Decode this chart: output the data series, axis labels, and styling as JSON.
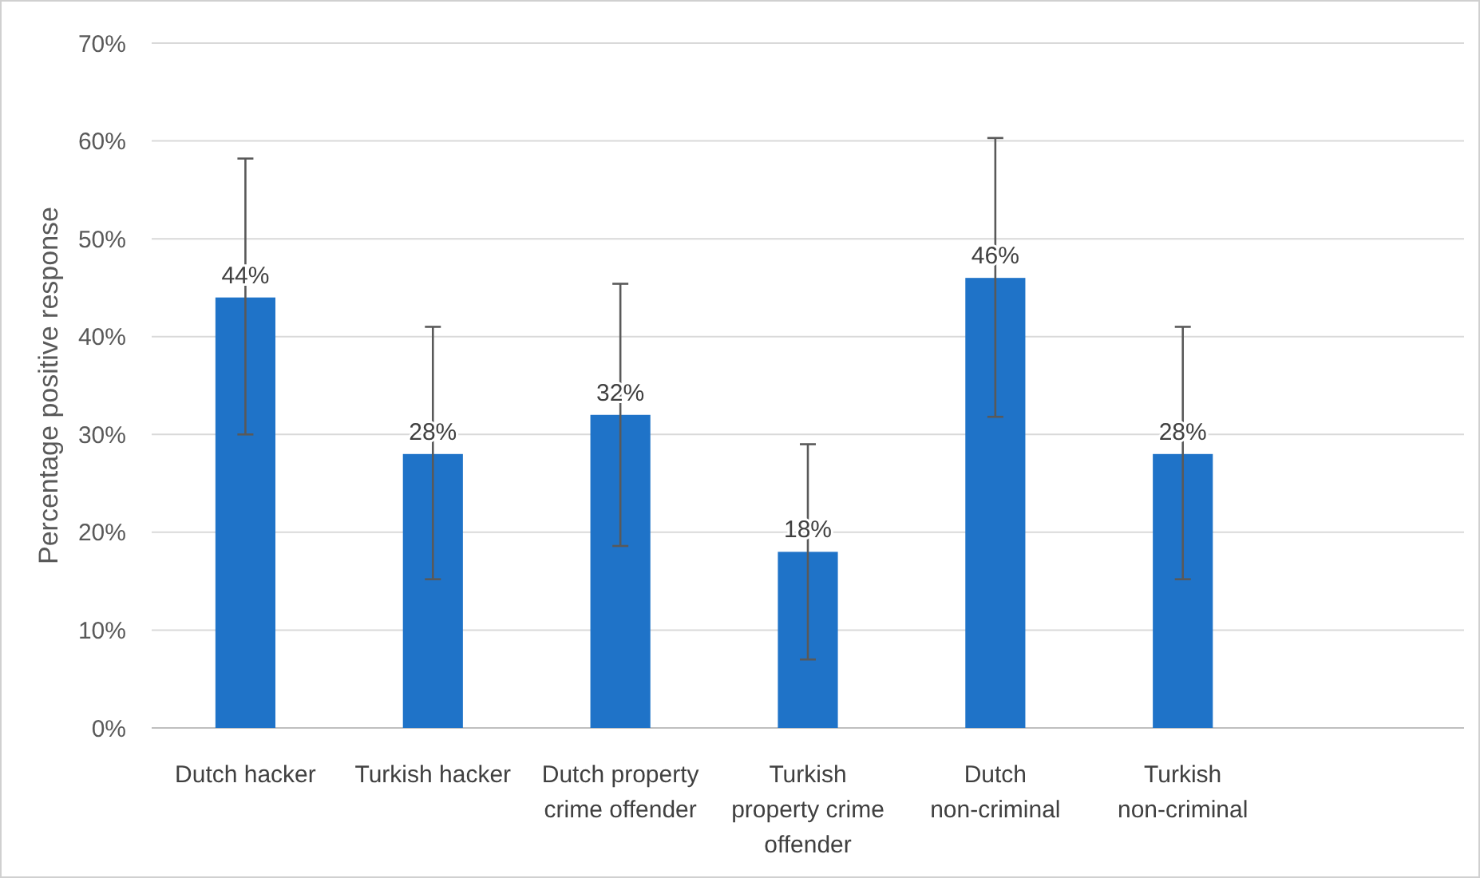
{
  "chart_data": {
    "type": "bar",
    "ylabel": "Percentage positive response",
    "categories": [
      "Dutch hacker",
      "Turkish hacker",
      "Dutch property crime offender",
      "Turkish property crime offender",
      "Dutch non-criminal",
      "Turkish non-criminal",
      null
    ],
    "values": [
      44,
      28,
      32,
      18,
      46,
      28,
      null
    ],
    "value_labels": [
      "44%",
      "28%",
      "32%",
      "18%",
      "46%",
      "28%",
      null
    ],
    "errors": [
      [
        30,
        58.2
      ],
      [
        15.2,
        41
      ],
      [
        18.6,
        45.4
      ],
      [
        7,
        29
      ],
      [
        31.8,
        60.3
      ],
      [
        15.2,
        41
      ],
      null
    ],
    "color": "#1f73c8",
    "ylim": [
      0,
      70
    ],
    "yticks": [
      {
        "value": 0,
        "label": "0%"
      },
      {
        "value": 10,
        "label": "10%"
      },
      {
        "value": 20,
        "label": "20%"
      },
      {
        "value": 30,
        "label": "30%"
      },
      {
        "value": 40,
        "label": "40%"
      },
      {
        "value": 50,
        "label": "50%"
      },
      {
        "value": 60,
        "label": "60%"
      },
      {
        "value": 70,
        "label": "70%"
      }
    ],
    "grid": "y"
  }
}
